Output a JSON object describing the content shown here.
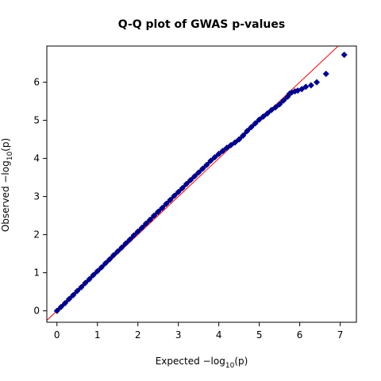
{
  "chart_data": {
    "type": "scatter",
    "title": "Q-Q plot of GWAS p-values",
    "xlabel": {
      "prefix": "Expected  −log",
      "sub": "10",
      "suffix": "(p)"
    },
    "ylabel": {
      "prefix": "Observed  −log",
      "sub": "10",
      "suffix": "(p)"
    },
    "xlim": [
      -0.25,
      7.4
    ],
    "ylim": [
      -0.3,
      6.95
    ],
    "xticks": [
      0,
      1,
      2,
      3,
      4,
      5,
      6,
      7
    ],
    "yticks": [
      0,
      1,
      2,
      3,
      4,
      5,
      6
    ],
    "xtick_labels": [
      "0",
      "1",
      "2",
      "3",
      "4",
      "5",
      "6",
      "7"
    ],
    "ytick_labels": [
      "0",
      "1",
      "2",
      "3",
      "4",
      "5",
      "6"
    ],
    "grid": false,
    "colors": {
      "points": "#00008b",
      "reference_line": "#ff0000"
    },
    "reference_line": {
      "slope": 1,
      "intercept": 0
    },
    "series": [
      {
        "points": [
          [
            0.0,
            0.0
          ],
          [
            0.1,
            0.1
          ],
          [
            0.2,
            0.2
          ],
          [
            0.3,
            0.31
          ],
          [
            0.4,
            0.41
          ],
          [
            0.5,
            0.52
          ],
          [
            0.6,
            0.62
          ],
          [
            0.7,
            0.73
          ],
          [
            0.8,
            0.83
          ],
          [
            0.9,
            0.94
          ],
          [
            1.0,
            1.04
          ],
          [
            1.1,
            1.14
          ],
          [
            1.2,
            1.25
          ],
          [
            1.3,
            1.35
          ],
          [
            1.4,
            1.46
          ],
          [
            1.5,
            1.56
          ],
          [
            1.6,
            1.66
          ],
          [
            1.7,
            1.77
          ],
          [
            1.8,
            1.87
          ],
          [
            1.9,
            1.98
          ],
          [
            2.0,
            2.08
          ],
          [
            2.1,
            2.18
          ],
          [
            2.2,
            2.29
          ],
          [
            2.3,
            2.39
          ],
          [
            2.4,
            2.5
          ],
          [
            2.5,
            2.6
          ],
          [
            2.6,
            2.7
          ],
          [
            2.7,
            2.81
          ],
          [
            2.8,
            2.91
          ],
          [
            2.9,
            3.02
          ],
          [
            3.0,
            3.12
          ],
          [
            3.1,
            3.22
          ],
          [
            3.2,
            3.33
          ],
          [
            3.3,
            3.43
          ],
          [
            3.4,
            3.53
          ],
          [
            3.5,
            3.63
          ],
          [
            3.6,
            3.73
          ],
          [
            3.7,
            3.83
          ],
          [
            3.8,
            3.94
          ],
          [
            3.9,
            4.03
          ],
          [
            4.0,
            4.12
          ],
          [
            4.1,
            4.2
          ],
          [
            4.2,
            4.28
          ],
          [
            4.3,
            4.35
          ],
          [
            4.4,
            4.42
          ],
          [
            4.5,
            4.5
          ],
          [
            4.6,
            4.6
          ],
          [
            4.7,
            4.72
          ],
          [
            4.8,
            4.82
          ],
          [
            4.9,
            4.92
          ],
          [
            5.0,
            5.02
          ],
          [
            5.1,
            5.1
          ],
          [
            5.2,
            5.18
          ],
          [
            5.3,
            5.27
          ],
          [
            5.4,
            5.34
          ],
          [
            5.5,
            5.42
          ],
          [
            5.6,
            5.52
          ],
          [
            5.7,
            5.62
          ],
          [
            5.75,
            5.7
          ],
          [
            5.8,
            5.73
          ],
          [
            5.88,
            5.76
          ],
          [
            5.95,
            5.78
          ],
          [
            6.05,
            5.82
          ],
          [
            6.15,
            5.88
          ],
          [
            6.28,
            5.92
          ],
          [
            6.42,
            6.0
          ],
          [
            6.65,
            6.22
          ],
          [
            7.1,
            6.72
          ]
        ]
      }
    ]
  }
}
